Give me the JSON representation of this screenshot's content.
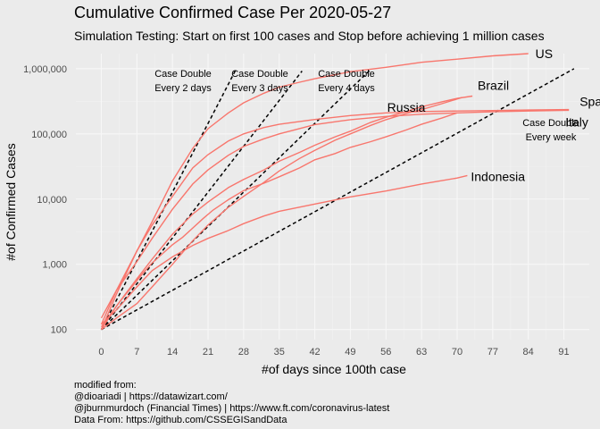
{
  "chart_data": {
    "type": "line",
    "title": "Cumulative Confirmed Case Per 2020-05-27",
    "subtitle": "Simulation Testing: Start on first 100 cases and Stop before achieving 1 million cases",
    "xlabel": "#of days since 100th case",
    "ylabel": "#of Confirmed Cases",
    "y_scale": "log10",
    "xlim": [
      -5,
      96
    ],
    "ylim": [
      70,
      1700000
    ],
    "x_ticks": [
      0,
      7,
      14,
      21,
      28,
      35,
      42,
      49,
      56,
      63,
      70,
      77,
      84,
      91
    ],
    "y_ticks": [
      100,
      1000,
      10000,
      100000,
      1000000
    ],
    "y_tick_labels": [
      "100",
      "1,000",
      "10,000",
      "100,000",
      "1,000,000"
    ],
    "grid": true,
    "legend": "none",
    "series_color": "#f8766d",
    "series": [
      {
        "name": "US",
        "x": [
          0,
          3,
          7,
          10,
          14,
          18,
          21,
          25,
          28,
          32,
          35,
          39,
          42,
          49,
          56,
          63,
          70,
          77,
          84
        ],
        "y": [
          100,
          350,
          1600,
          4500,
          19000,
          60000,
          120000,
          210000,
          300000,
          420000,
          520000,
          620000,
          700000,
          900000,
          1050000,
          1250000,
          1400000,
          1570000,
          1700000
        ]
      },
      {
        "name": "Spain",
        "x": [
          0,
          3,
          7,
          10,
          14,
          18,
          21,
          25,
          28,
          32,
          35,
          42,
          49,
          56,
          63,
          70,
          77,
          84,
          92
        ],
        "y": [
          120,
          400,
          1600,
          4000,
          11000,
          30000,
          48000,
          78000,
          100000,
          125000,
          140000,
          166000,
          191000,
          210000,
          220000,
          224000,
          228000,
          232000,
          236000
        ]
      },
      {
        "name": "Italy",
        "x": [
          0,
          3,
          7,
          10,
          14,
          18,
          21,
          25,
          28,
          32,
          35,
          42,
          49,
          56,
          63,
          70,
          77,
          84,
          92
        ],
        "y": [
          150,
          400,
          1100,
          2500,
          7000,
          17000,
          28000,
          47000,
          64000,
          84000,
          100000,
          139000,
          165000,
          185000,
          200000,
          210000,
          218000,
          224000,
          230000
        ]
      },
      {
        "name": "Brazil",
        "x": [
          0,
          3,
          7,
          10,
          14,
          18,
          21,
          25,
          28,
          32,
          35,
          39,
          42,
          46,
          49,
          53,
          56,
          60,
          63,
          67,
          70,
          73
        ],
        "y": [
          100,
          230,
          600,
          1200,
          2900,
          5900,
          9000,
          15000,
          20000,
          28000,
          38000,
          52000,
          67000,
          90000,
          110000,
          150000,
          180000,
          220000,
          260000,
          310000,
          350000,
          380000
        ]
      },
      {
        "name": "Russia",
        "x": [
          0,
          3,
          7,
          10,
          14,
          18,
          21,
          25,
          28,
          32,
          35,
          39,
          42,
          46,
          49,
          53,
          56,
          60,
          63,
          67,
          71
        ],
        "y": [
          100,
          150,
          250,
          450,
          1000,
          2300,
          4000,
          7500,
          11000,
          18000,
          27000,
          42000,
          56000,
          80000,
          100000,
          135000,
          165000,
          205000,
          235000,
          290000,
          362000
        ]
      },
      {
        "name": "Indonesia",
        "x": [
          0,
          3,
          7,
          10,
          14,
          18,
          21,
          25,
          28,
          32,
          35,
          42,
          49,
          56,
          63,
          70,
          72
        ],
        "y": [
          120,
          200,
          450,
          800,
          1300,
          1950,
          2500,
          3300,
          4200,
          5500,
          6500,
          8400,
          10800,
          13300,
          17000,
          21000,
          23000
        ]
      },
      {
        "name": "",
        "x": [
          0,
          2,
          4,
          6,
          8,
          10,
          12,
          14,
          16,
          18,
          20,
          22,
          25,
          28,
          32,
          35,
          39,
          42,
          46,
          49,
          53,
          56,
          60,
          63,
          67,
          70
        ],
        "y": [
          110,
          180,
          290,
          450,
          700,
          1050,
          1450,
          2000,
          2600,
          3600,
          5000,
          6800,
          9800,
          13500,
          17500,
          22000,
          30000,
          40000,
          50000,
          62000,
          76000,
          90000,
          115000,
          140000,
          175000,
          210000
        ]
      }
    ],
    "reference_lines": [
      {
        "label_lines": [
          "Case Double",
          "Every 2 days"
        ],
        "doubling_days": 2
      },
      {
        "label_lines": [
          "Case Double",
          "Every 3 days"
        ],
        "doubling_days": 3
      },
      {
        "label_lines": [
          "Case Double",
          "Every 4 days"
        ],
        "doubling_days": 4
      },
      {
        "label_lines": [
          "Case Double",
          "Every week"
        ],
        "doubling_days": 7
      }
    ],
    "caption_lines": [
      "modified from:",
      "@dioariadi | https://datawizart.com/",
      "@jburnmurdoch (Financial Times) | https://www.ft.com/coronavirus-latest",
      "Data From: https://github.com/CSSEGISandData"
    ]
  }
}
